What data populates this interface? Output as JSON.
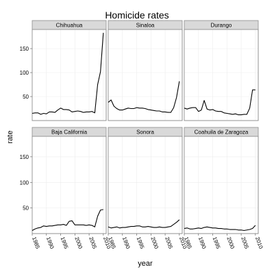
{
  "chart_data": {
    "type": "line",
    "title": "Homicide rates",
    "xlabel": "year",
    "ylabel": "rate",
    "xlim": [
      1985,
      2011
    ],
    "ylim": [
      0,
      190
    ],
    "x_ticks": [
      1985,
      1990,
      1995,
      2000,
      2005,
      2010
    ],
    "y_ticks": [
      50,
      100,
      150
    ],
    "grid": true,
    "x": [
      1985,
      1986,
      1987,
      1988,
      1989,
      1990,
      1991,
      1992,
      1993,
      1994,
      1995,
      1996,
      1997,
      1998,
      1999,
      2000,
      2001,
      2002,
      2003,
      2004,
      2005,
      2006,
      2007,
      2008,
      2009,
      2010
    ],
    "panels": [
      {
        "name": "Chihuahua",
        "values": [
          15,
          16,
          16,
          13,
          15,
          14,
          18,
          18,
          17,
          22,
          26,
          23,
          23,
          22,
          18,
          19,
          20,
          19,
          17,
          18,
          18,
          19,
          16,
          75,
          102,
          183
        ]
      },
      {
        "name": "Sinaloa",
        "values": [
          38,
          43,
          30,
          25,
          22,
          22,
          24,
          26,
          25,
          25,
          27,
          26,
          26,
          25,
          23,
          22,
          21,
          20,
          20,
          18,
          18,
          17,
          17,
          27,
          48,
          82
        ]
      },
      {
        "name": "Durango",
        "values": [
          26,
          24,
          26,
          27,
          27,
          19,
          22,
          42,
          24,
          22,
          23,
          20,
          19,
          19,
          16,
          15,
          14,
          13,
          14,
          12,
          12,
          13,
          13,
          26,
          64,
          64
        ]
      },
      {
        "name": "Baja California",
        "values": [
          6,
          9,
          11,
          12,
          15,
          14,
          15,
          15,
          16,
          17,
          17,
          18,
          16,
          24,
          25,
          17,
          17,
          17,
          17,
          16,
          17,
          16,
          13,
          34,
          46,
          47
        ]
      },
      {
        "name": "Sonora",
        "values": [
          13,
          11,
          12,
          13,
          11,
          12,
          12,
          13,
          14,
          14,
          15,
          15,
          13,
          13,
          14,
          13,
          12,
          12,
          13,
          12,
          12,
          13,
          14,
          18,
          22,
          27
        ]
      },
      {
        "name": "Coahuila de Zaragoza",
        "values": [
          10,
          11,
          9,
          9,
          10,
          11,
          10,
          12,
          13,
          12,
          11,
          11,
          10,
          10,
          9,
          9,
          8,
          8,
          8,
          7,
          7,
          6,
          7,
          8,
          10,
          16
        ]
      }
    ]
  }
}
